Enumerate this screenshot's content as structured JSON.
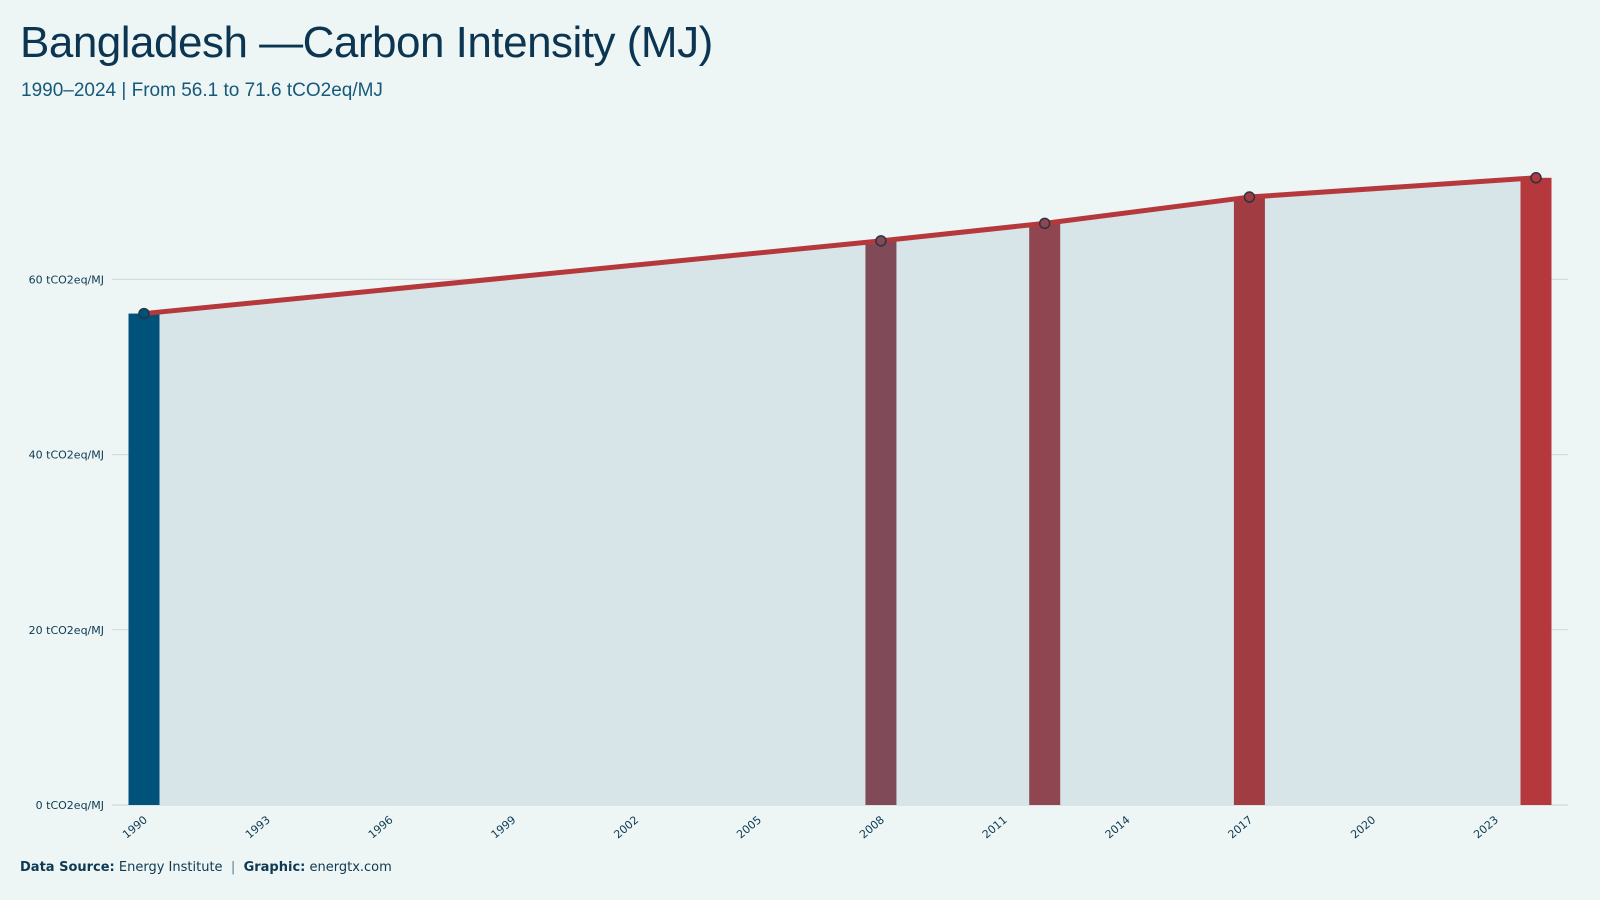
{
  "header": {
    "title": "Bangladesh —Carbon Intensity (MJ)",
    "subtitle": "1990–2024 | From 56.1 to 71.6 tCO2eq/MJ"
  },
  "footer": {
    "source_label": "Data Source:",
    "source_value": "Energy Institute",
    "separator": "|",
    "graphic_label": "Graphic:",
    "graphic_value": "energtx.com"
  },
  "colors": {
    "background": "#eef5f5",
    "area_fill": "#d7e4e8",
    "line": "#b5383c",
    "gridline": "#cdd8dc",
    "bar_low": "#00527a",
    "bar_high": "#b5383c",
    "marker_stroke": "#2a3340"
  },
  "chart_data": {
    "type": "line",
    "title": "Bangladesh —Carbon Intensity (MJ)",
    "subtitle": "1990–2024 | From 56.1 to 71.6 tCO2eq/MJ",
    "xlabel": "",
    "ylabel": "",
    "xlim": [
      1990,
      2024
    ],
    "ylim": [
      0,
      75
    ],
    "y_unit": "tCO2eq/MJ",
    "y_ticks": [
      0,
      20,
      40,
      60
    ],
    "y_tick_labels": [
      "0 tCO2eq/MJ",
      "20 tCO2eq/MJ",
      "40 tCO2eq/MJ",
      "60 tCO2eq/MJ"
    ],
    "x_ticks": [
      1990,
      1993,
      1996,
      1999,
      2002,
      2005,
      2008,
      2011,
      2014,
      2017,
      2020,
      2023
    ],
    "x_tick_labels": [
      "1990",
      "1993",
      "1996",
      "1999",
      "2002",
      "2005",
      "2008",
      "2011",
      "2014",
      "2017",
      "2020",
      "2023"
    ],
    "grid": true,
    "series": [
      {
        "x": [
          1990,
          2008,
          2012,
          2017,
          2024
        ],
        "y": [
          56.1,
          64.4,
          66.4,
          69.4,
          71.6
        ]
      }
    ],
    "highlight_bars": {
      "x": [
        1990,
        2008,
        2012,
        2017,
        2024
      ],
      "y": [
        56.1,
        64.4,
        66.4,
        69.4,
        71.6
      ],
      "colors": [
        "#00527a",
        "#804a58",
        "#8f4650",
        "#a23c43",
        "#b5383c"
      ]
    }
  }
}
